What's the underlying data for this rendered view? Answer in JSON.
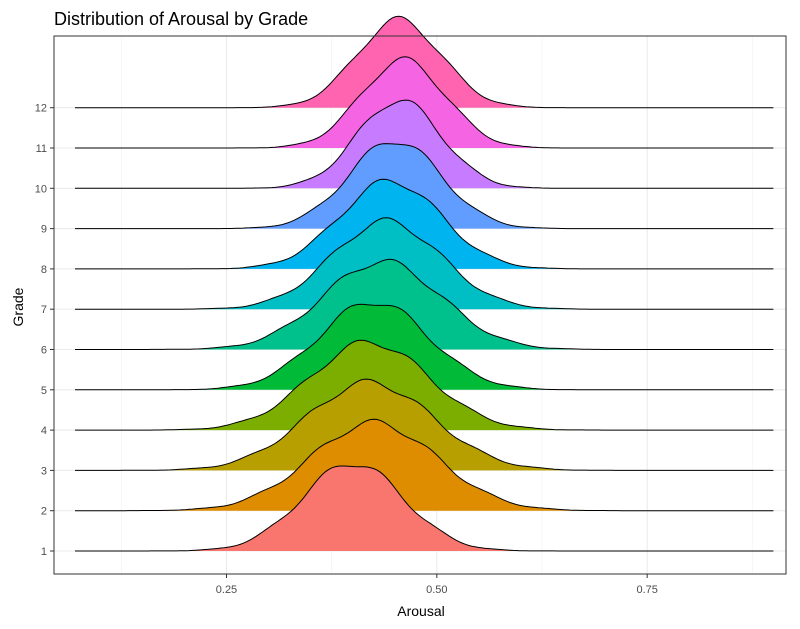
{
  "chart_data": {
    "type": "ridgeline",
    "title": "Distribution of Arousal by Grade",
    "xlabel": "Arousal",
    "ylabel": "Grade",
    "xlim": [
      0.045,
      0.915
    ],
    "x_ticks": [
      0.25,
      0.5,
      0.75
    ],
    "x_tick_labels": [
      "0.25",
      "0.50",
      "0.75"
    ],
    "categories": [
      "1",
      "2",
      "3",
      "4",
      "5",
      "6",
      "7",
      "8",
      "9",
      "10",
      "11",
      "12"
    ],
    "grid": true,
    "series": [
      {
        "category": "1",
        "color": "#F8766D",
        "peak": 0.4,
        "sd": 0.06,
        "range": [
          0.07,
          0.9
        ]
      },
      {
        "category": "2",
        "color": "#DE8C00",
        "peak": 0.425,
        "sd": 0.075,
        "range": [
          0.07,
          0.9
        ]
      },
      {
        "category": "3",
        "color": "#B79F00",
        "peak": 0.42,
        "sd": 0.075,
        "range": [
          0.07,
          0.9
        ]
      },
      {
        "category": "4",
        "color": "#7CAE00",
        "peak": 0.42,
        "sd": 0.07,
        "range": [
          0.07,
          0.9
        ]
      },
      {
        "category": "5",
        "color": "#00BA38",
        "peak": 0.425,
        "sd": 0.065,
        "range": [
          0.07,
          0.9
        ]
      },
      {
        "category": "6",
        "color": "#00C08B",
        "peak": 0.435,
        "sd": 0.07,
        "range": [
          0.07,
          0.9
        ]
      },
      {
        "category": "7",
        "color": "#00BFC4",
        "peak": 0.44,
        "sd": 0.065,
        "range": [
          0.07,
          0.9
        ]
      },
      {
        "category": "8",
        "color": "#00B4F0",
        "peak": 0.445,
        "sd": 0.06,
        "range": [
          0.07,
          0.9
        ]
      },
      {
        "category": "9",
        "color": "#619CFF",
        "peak": 0.45,
        "sd": 0.055,
        "range": [
          0.07,
          0.9
        ]
      },
      {
        "category": "10",
        "color": "#C77CFF",
        "peak": 0.455,
        "sd": 0.05,
        "range": [
          0.07,
          0.9
        ]
      },
      {
        "category": "11",
        "color": "#F564E3",
        "peak": 0.46,
        "sd": 0.05,
        "range": [
          0.07,
          0.9
        ]
      },
      {
        "category": "12",
        "color": "#FF64B0",
        "peak": 0.455,
        "sd": 0.05,
        "range": [
          0.07,
          0.9
        ]
      }
    ]
  }
}
